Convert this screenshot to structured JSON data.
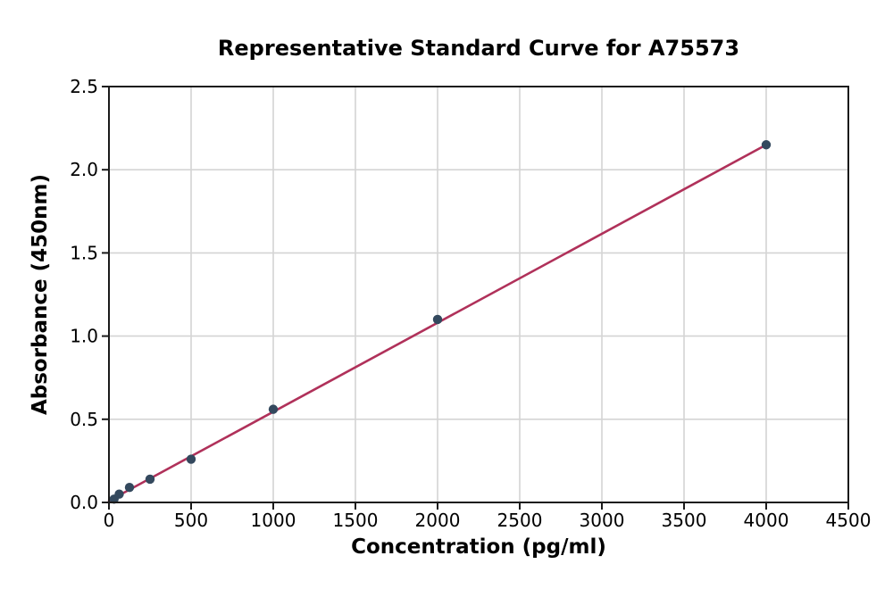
{
  "chart_data": {
    "type": "scatter",
    "title": "Representative Standard Curve for A75573",
    "xlabel": "Concentration (pg/ml)",
    "ylabel": "Absorbance (450nm)",
    "xlim": [
      0,
      4500
    ],
    "ylim": [
      0,
      2.5
    ],
    "xticks": [
      "0",
      "500",
      "1000",
      "1500",
      "2000",
      "2500",
      "3000",
      "3500",
      "4000",
      "4500"
    ],
    "yticks": [
      "0.0",
      "0.5",
      "1.0",
      "1.5",
      "2.0",
      "2.5"
    ],
    "grid": true,
    "legend": null,
    "series": [
      {
        "name": "standard-points",
        "type": "scatter",
        "x": [
          31.25,
          62.5,
          125,
          250,
          500,
          1000,
          2000,
          4000
        ],
        "y": [
          0.02,
          0.05,
          0.09,
          0.14,
          0.26,
          0.56,
          1.1,
          2.15
        ],
        "color": "#34495e",
        "marker_radius": 5.2
      },
      {
        "name": "linear-fit-line",
        "type": "line",
        "x": [
          0,
          4000
        ],
        "y": [
          0.01,
          2.15
        ],
        "color": "#b0315a",
        "width": 2.6
      }
    ],
    "colors": {
      "grid": "#d4d4d4",
      "axis": "#1a1a1a",
      "background": "#ffffff",
      "tick_label": "#000000"
    }
  }
}
